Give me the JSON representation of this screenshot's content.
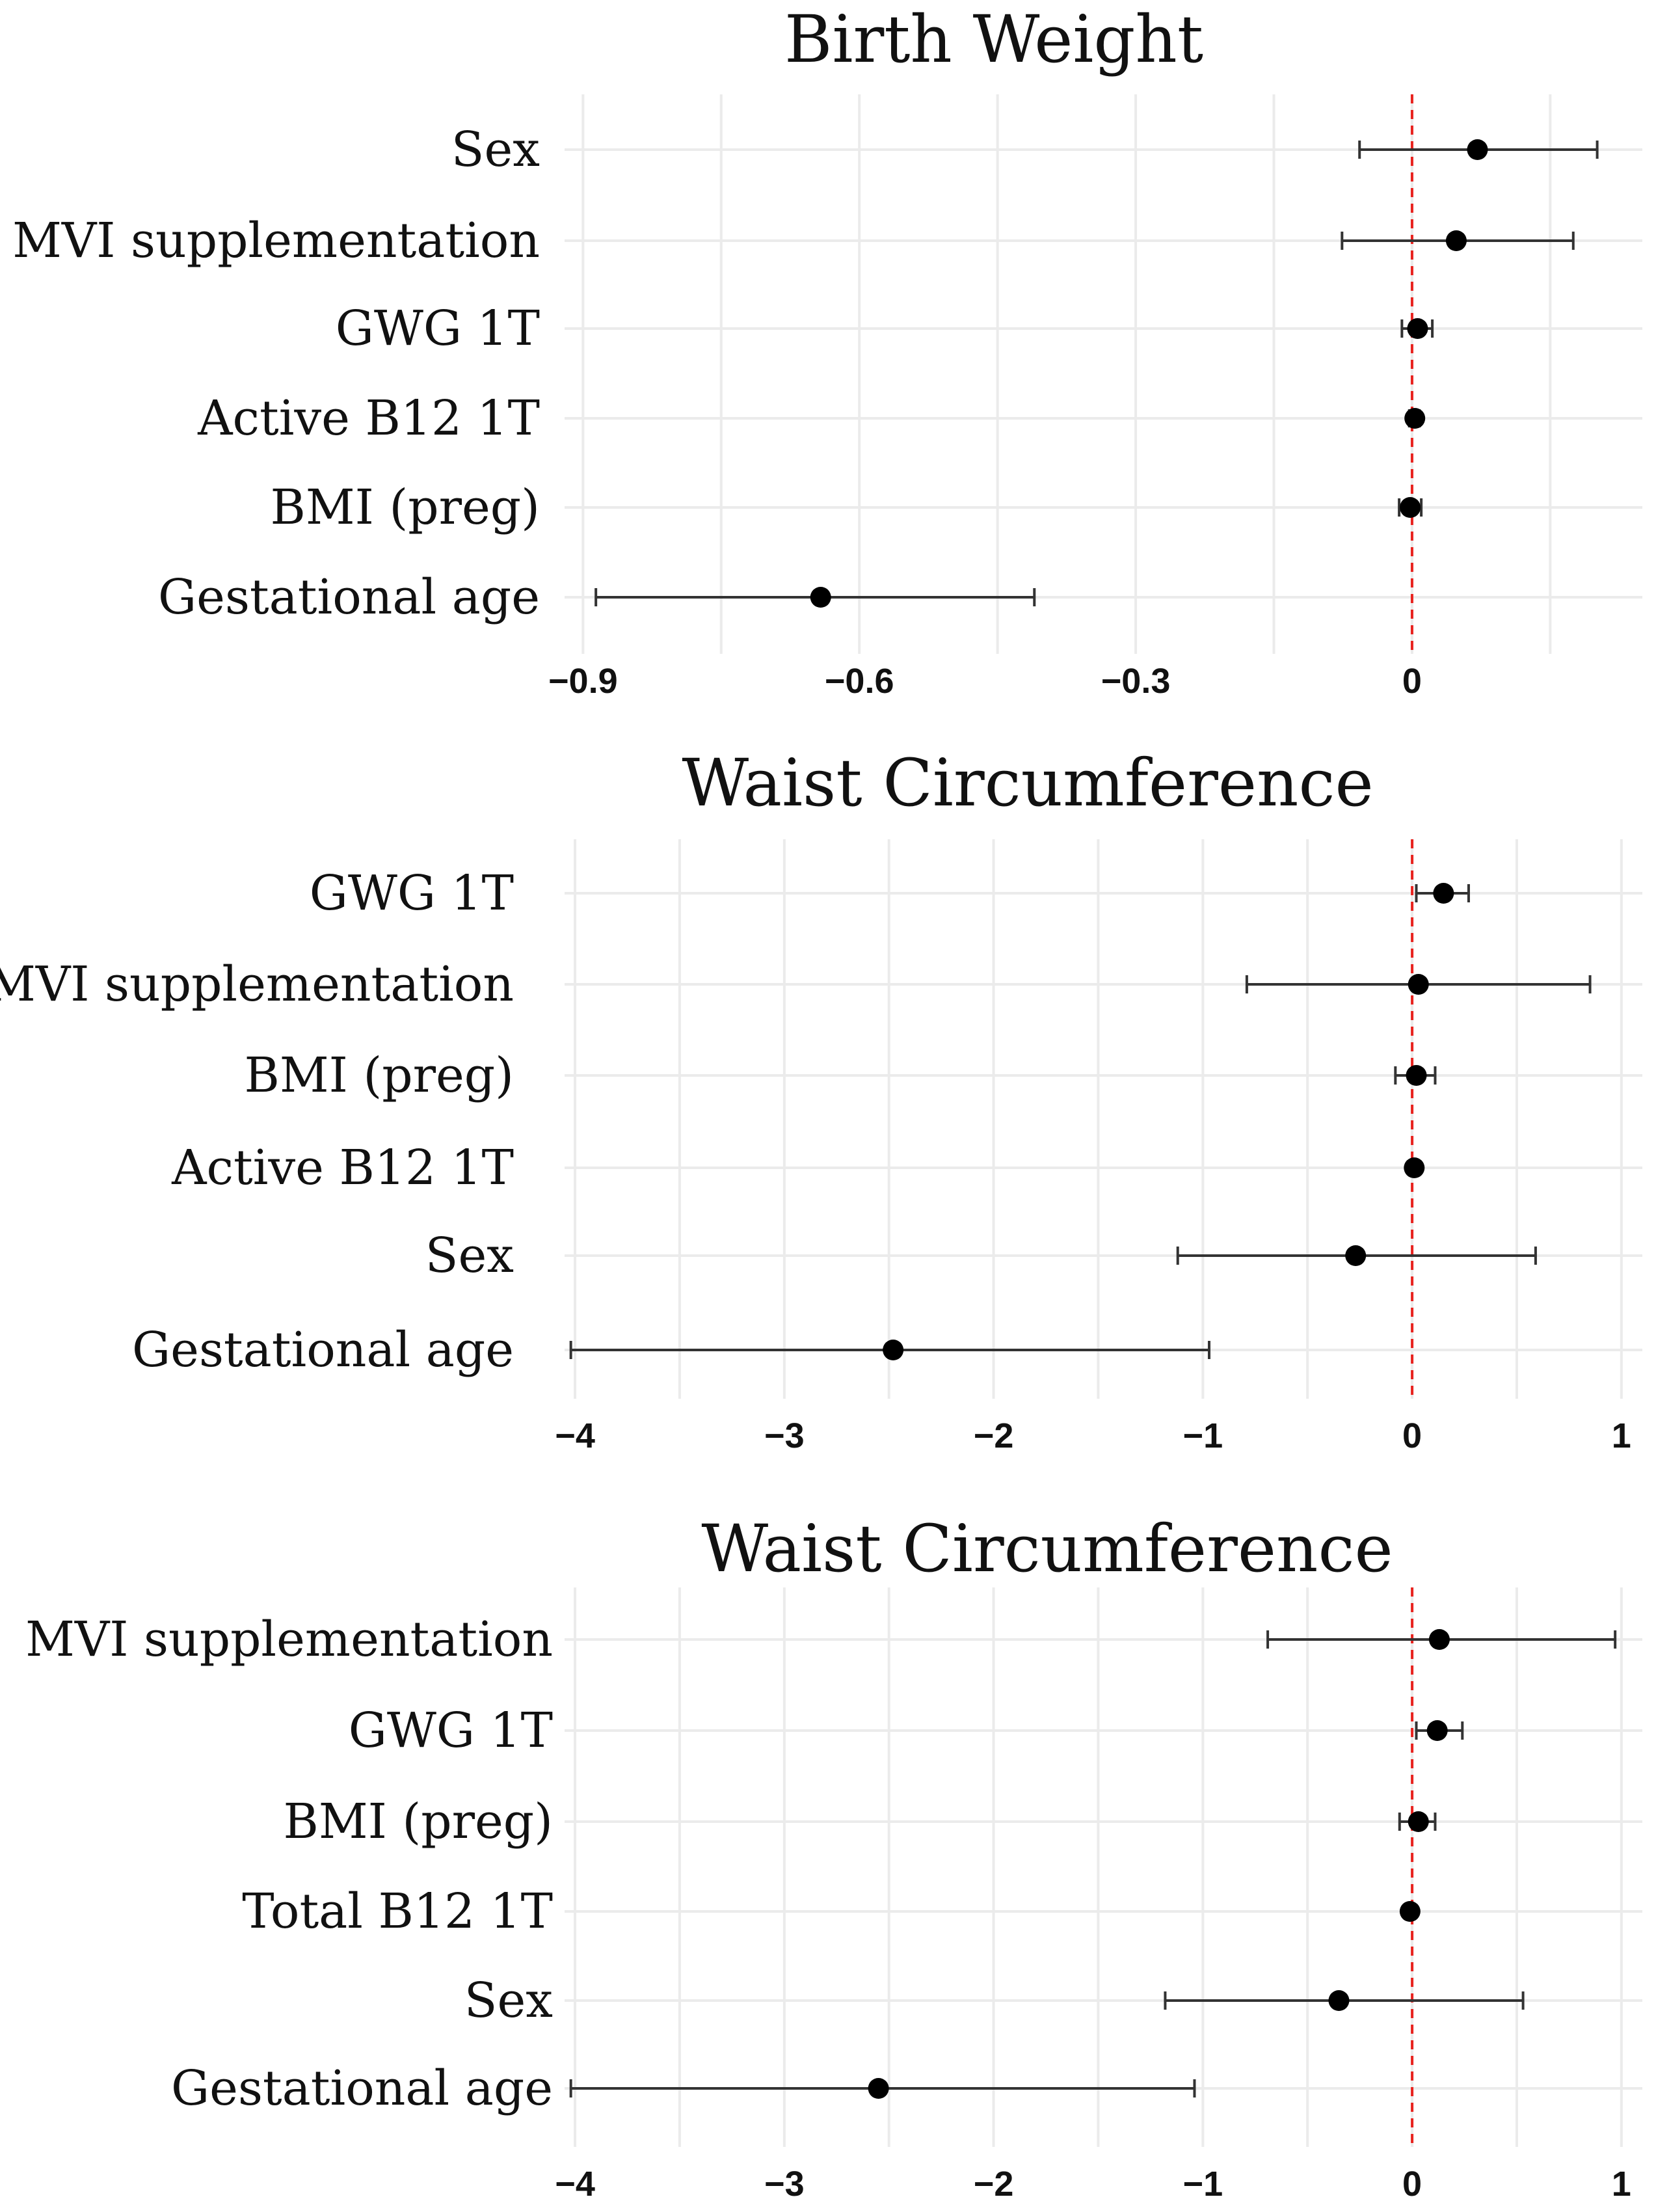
{
  "chart_data": [
    {
      "type": "forest",
      "title": "Birth  Weight",
      "xlim": [
        -0.92,
        0.25
      ],
      "xticks": [
        -0.9,
        -0.6,
        -0.3,
        0
      ],
      "xtick_labels": [
        "−0.9",
        "−0.6",
        "−0.3",
        "0"
      ],
      "reference_line": 0,
      "categories": [
        "Sex",
        "MVI supplementation",
        "GWG 1T",
        "Active B12 1T",
        "BMI (preg)",
        "Gestational age"
      ],
      "estimates": [
        0.071,
        0.048,
        0.006,
        0.003,
        -0.002,
        -0.642
      ],
      "ci_low": [
        -0.057,
        -0.076,
        -0.011,
        -0.003,
        -0.014,
        -0.886
      ],
      "ci_high": [
        0.201,
        0.175,
        0.022,
        0.008,
        0.01,
        -0.41
      ]
    },
    {
      "type": "forest",
      "title": "Waist Circumference",
      "xlim": [
        -4.05,
        1.1
      ],
      "xticks": [
        -4,
        -3,
        -2,
        -1,
        0,
        1
      ],
      "xtick_labels": [
        "−4",
        "−3",
        "−2",
        "−1",
        "0",
        "1"
      ],
      "reference_line": 0,
      "categories": [
        "GWG 1T",
        "MVI supplementation",
        "BMI (preg)",
        "Active B12 1T",
        "Sex",
        "Gestational age"
      ],
      "estimates": [
        0.15,
        0.03,
        0.02,
        0.01,
        -0.27,
        -2.48
      ],
      "ci_low": [
        0.02,
        -0.79,
        -0.08,
        0.0,
        -1.12,
        -4.02
      ],
      "ci_high": [
        0.27,
        0.85,
        0.11,
        0.02,
        0.59,
        -0.97
      ]
    },
    {
      "type": "forest",
      "title": "Waist Circumference",
      "xlim": [
        -4.05,
        1.1
      ],
      "xticks": [
        -4,
        -3,
        -2,
        -1,
        0,
        1
      ],
      "xtick_labels": [
        "−4",
        "−3",
        "−2",
        "−1",
        "0",
        "1"
      ],
      "reference_line": 0,
      "categories": [
        "MVI supplementation",
        "GWG 1T",
        "BMI (preg)",
        "Total B12 1T",
        "Sex",
        "Gestational age"
      ],
      "estimates": [
        0.13,
        0.12,
        0.03,
        -0.01,
        -0.35,
        -2.55
      ],
      "ci_low": [
        -0.69,
        0.02,
        -0.06,
        -0.02,
        -1.18,
        -4.02
      ],
      "ci_high": [
        0.97,
        0.24,
        0.11,
        0.0,
        0.53,
        -1.04
      ]
    }
  ]
}
